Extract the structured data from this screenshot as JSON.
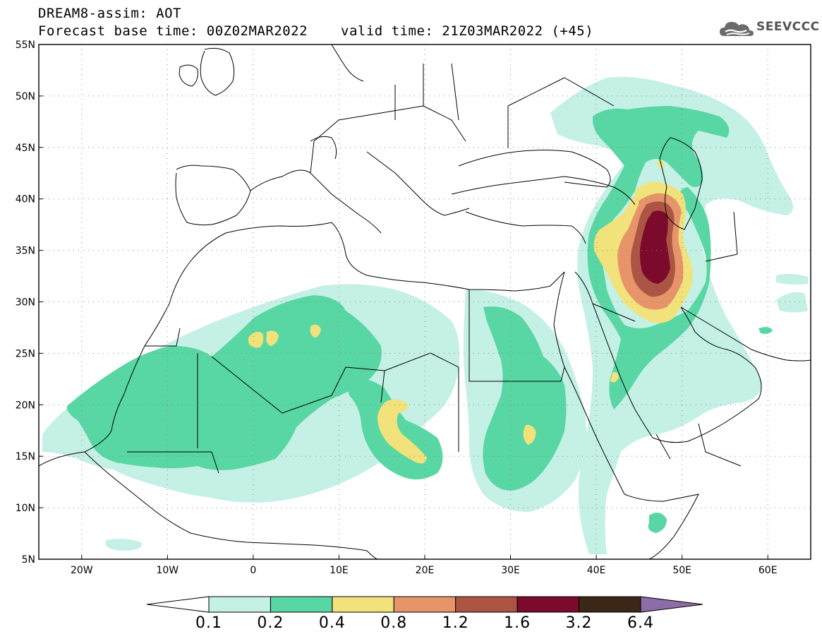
{
  "header": {
    "title": "DREAM8-assim: AOT",
    "base_time": "Forecast base time: 00Z02MAR2022",
    "valid_time": "valid time: 21Z03MAR2022 (+45)",
    "logo_text": "SEEVCCC"
  },
  "map": {
    "lon_range": [
      -25,
      65
    ],
    "lat_range": [
      5,
      55
    ],
    "lat_ticks": [
      "55N",
      "50N",
      "45N",
      "40N",
      "35N",
      "30N",
      "25N",
      "20N",
      "15N",
      "10N",
      "5N"
    ],
    "lon_ticks": [
      "20W",
      "10W",
      "0",
      "10E",
      "20E",
      "30E",
      "40E",
      "50E",
      "60E"
    ],
    "gridlines": "dotted"
  },
  "colorbar": {
    "levels": [
      "0.1",
      "0.2",
      "0.4",
      "0.8",
      "1.2",
      "1.6",
      "3.2",
      "6.4"
    ],
    "colors": [
      "#c4f0e6",
      "#58d6a3",
      "#f2e27c",
      "#e8946a",
      "#ad5545",
      "#7b0a2c",
      "#3b2718",
      "#8e6ca8"
    ],
    "under_color": "#ffffff"
  }
}
